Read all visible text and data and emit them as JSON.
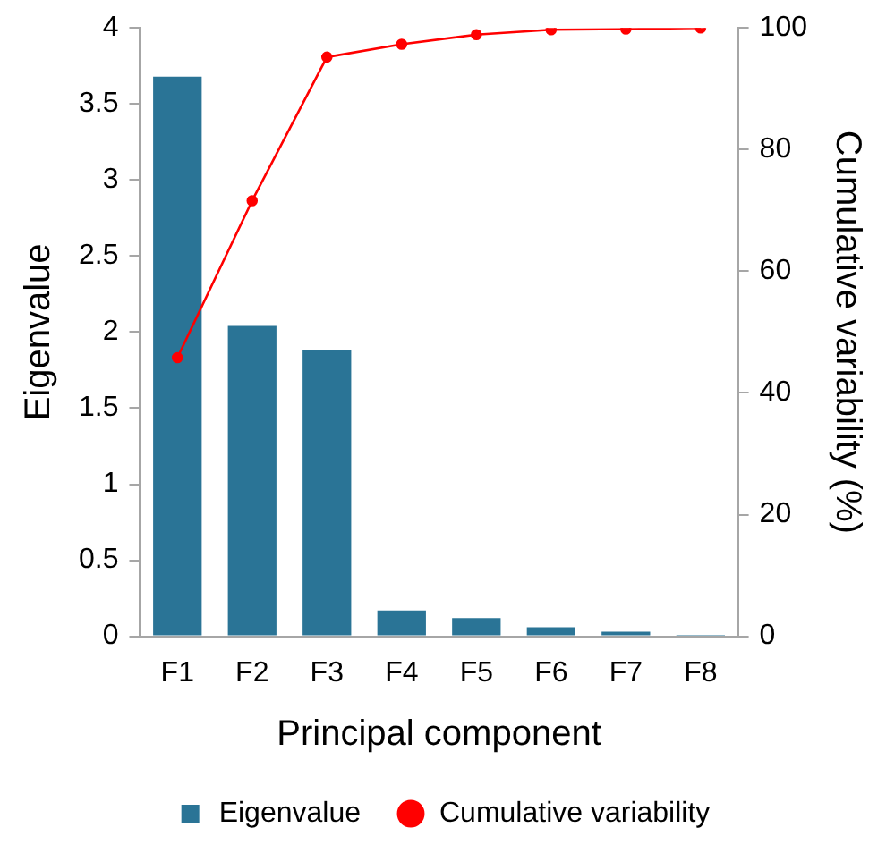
{
  "chart_data": {
    "type": "bar",
    "categories": [
      "F1",
      "F2",
      "F3",
      "F4",
      "F5",
      "F6",
      "F7",
      "F8"
    ],
    "xlabel": "Principal component",
    "ylabel": "Eigenvalue",
    "y2label": "Cumulative variability (%)",
    "series": [
      {
        "name": "Eigenvalue",
        "color": "#2a7496",
        "values": [
          3.68,
          2.04,
          1.88,
          0.17,
          0.12,
          0.06,
          0.03,
          0.01
        ]
      },
      {
        "name": "Cumulative variability",
        "type": "line",
        "axis": "y2",
        "color": "#ff0000",
        "marker": "circle",
        "values": [
          45.8,
          71.6,
          95.2,
          97.3,
          98.9,
          99.7,
          99.8,
          100
        ]
      }
    ],
    "ylim": [
      0,
      4
    ],
    "yticks": [
      0,
      0.5,
      1,
      1.5,
      2,
      2.5,
      3,
      3.5,
      4
    ],
    "y2lim": [
      0,
      100
    ],
    "y2ticks": [
      0,
      20,
      40,
      60,
      80,
      100
    ],
    "grid": false,
    "legend": "bottom"
  }
}
